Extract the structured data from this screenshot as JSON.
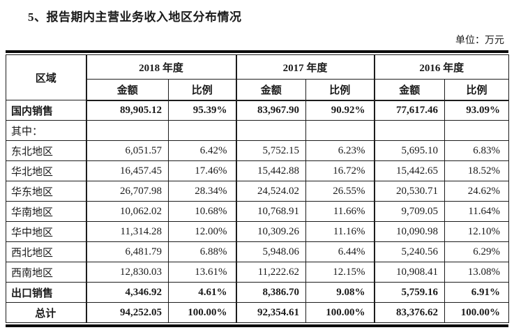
{
  "title": "5、报告期内主营业务收入地区分布情况",
  "unit_label": "单位：万元",
  "table": {
    "region_header": "区域",
    "amount_label": "金额",
    "ratio_label": "比例",
    "year_groups": [
      {
        "label": "2018 年度"
      },
      {
        "label": "2017 年度"
      },
      {
        "label": "2016 年度"
      }
    ],
    "rows": [
      {
        "label": "国内销售",
        "bold": true,
        "center": false,
        "values": [
          "89,905.12",
          "95.39%",
          "83,967.90",
          "90.92%",
          "77,617.46",
          "93.09%"
        ]
      },
      {
        "label": "其中：",
        "bold": false,
        "center": false,
        "values": [
          "",
          "",
          "",
          "",
          "",
          ""
        ]
      },
      {
        "label": "东北地区",
        "bold": false,
        "center": false,
        "values": [
          "6,051.57",
          "6.42%",
          "5,752.15",
          "6.23%",
          "5,695.10",
          "6.83%"
        ]
      },
      {
        "label": "华北地区",
        "bold": false,
        "center": false,
        "values": [
          "16,457.45",
          "17.46%",
          "15,442.88",
          "16.72%",
          "15,442.65",
          "18.52%"
        ]
      },
      {
        "label": "华东地区",
        "bold": false,
        "center": false,
        "values": [
          "26,707.98",
          "28.34%",
          "24,524.02",
          "26.55%",
          "20,530.71",
          "24.62%"
        ]
      },
      {
        "label": "华南地区",
        "bold": false,
        "center": false,
        "values": [
          "10,062.02",
          "10.68%",
          "10,768.91",
          "11.66%",
          "9,709.05",
          "11.64%"
        ]
      },
      {
        "label": "华中地区",
        "bold": false,
        "center": false,
        "values": [
          "11,314.28",
          "12.00%",
          "10,309.26",
          "11.16%",
          "10,090.98",
          "12.10%"
        ]
      },
      {
        "label": "西北地区",
        "bold": false,
        "center": false,
        "values": [
          "6,481.79",
          "6.88%",
          "5,948.06",
          "6.44%",
          "5,240.56",
          "6.29%"
        ]
      },
      {
        "label": "西南地区",
        "bold": false,
        "center": false,
        "values": [
          "12,830.03",
          "13.61%",
          "11,222.62",
          "12.15%",
          "10,908.41",
          "13.08%"
        ]
      },
      {
        "label": "出口销售",
        "bold": true,
        "center": false,
        "values": [
          "4,346.92",
          "4.61%",
          "8,386.70",
          "9.08%",
          "5,759.16",
          "6.91%"
        ]
      },
      {
        "label": "总计",
        "bold": true,
        "center": true,
        "values": [
          "94,252.05",
          "100.00%",
          "92,354.61",
          "100.00%",
          "83,376.62",
          "100.00%"
        ]
      }
    ]
  }
}
